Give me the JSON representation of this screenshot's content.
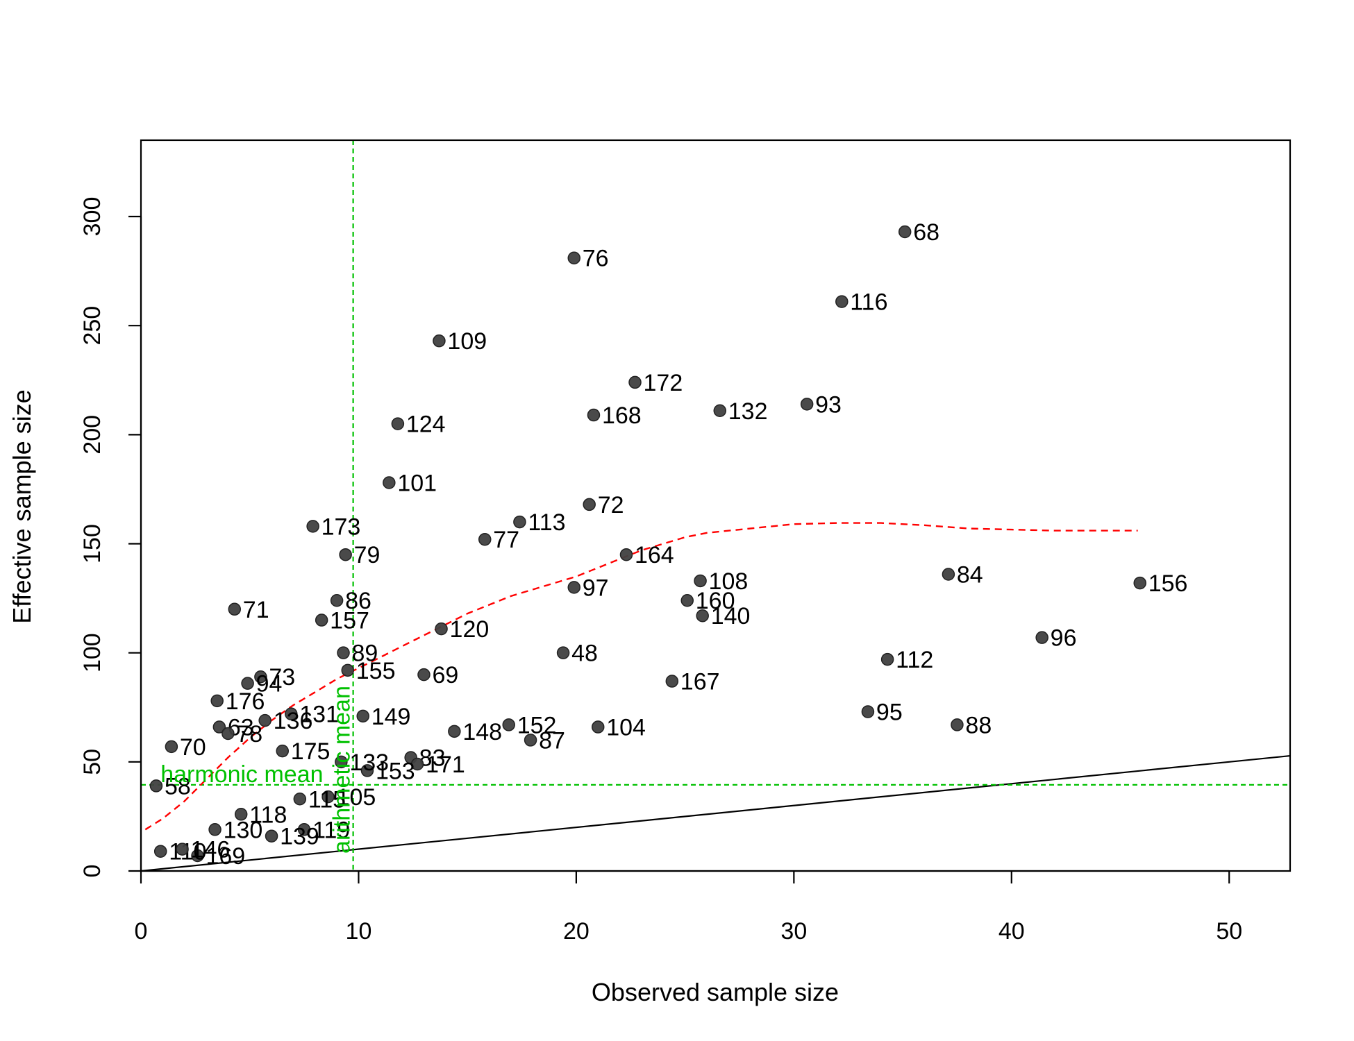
{
  "chart_data": {
    "type": "scatter",
    "title": "",
    "xlabel": "Observed sample size",
    "ylabel": "Effective sample size",
    "xlim": [
      0,
      52.8
    ],
    "ylim": [
      0,
      335
    ],
    "x_ticks": [
      0,
      10,
      20,
      30,
      40,
      50
    ],
    "y_ticks": [
      0,
      50,
      100,
      150,
      200,
      250,
      300
    ],
    "grid": false,
    "legend": "none",
    "colors": {
      "points": "#404040",
      "loess": "#ff0000",
      "reference": "#00c000",
      "identity": "#000000"
    },
    "points": [
      {
        "label": "68",
        "x": 35.1,
        "y": 293
      },
      {
        "label": "76",
        "x": 19.9,
        "y": 281
      },
      {
        "label": "116",
        "x": 32.2,
        "y": 261
      },
      {
        "label": "109",
        "x": 13.7,
        "y": 243
      },
      {
        "label": "172",
        "x": 22.7,
        "y": 224
      },
      {
        "label": "93",
        "x": 30.6,
        "y": 214
      },
      {
        "label": "132",
        "x": 26.6,
        "y": 211
      },
      {
        "label": "168",
        "x": 20.8,
        "y": 209
      },
      {
        "label": "124",
        "x": 11.8,
        "y": 205
      },
      {
        "label": "101",
        "x": 11.4,
        "y": 178
      },
      {
        "label": "72",
        "x": 20.6,
        "y": 168
      },
      {
        "label": "113",
        "x": 17.4,
        "y": 160
      },
      {
        "label": "173",
        "x": 7.9,
        "y": 158
      },
      {
        "label": "77",
        "x": 15.8,
        "y": 152
      },
      {
        "label": "79",
        "x": 9.4,
        "y": 145
      },
      {
        "label": "164",
        "x": 22.3,
        "y": 145
      },
      {
        "label": "84",
        "x": 37.1,
        "y": 136
      },
      {
        "label": "108",
        "x": 25.7,
        "y": 133
      },
      {
        "label": "156",
        "x": 45.9,
        "y": 132
      },
      {
        "label": "97",
        "x": 19.9,
        "y": 130
      },
      {
        "label": "86",
        "x": 9.0,
        "y": 124
      },
      {
        "label": "160",
        "x": 25.1,
        "y": 124
      },
      {
        "label": "71",
        "x": 4.3,
        "y": 120
      },
      {
        "label": "140",
        "x": 25.8,
        "y": 117
      },
      {
        "label": "157",
        "x": 8.3,
        "y": 115
      },
      {
        "label": "120",
        "x": 13.8,
        "y": 111
      },
      {
        "label": "96",
        "x": 41.4,
        "y": 107
      },
      {
        "label": "48",
        "x": 19.4,
        "y": 100
      },
      {
        "label": "89",
        "x": 9.3,
        "y": 100
      },
      {
        "label": "112",
        "x": 34.3,
        "y": 97
      },
      {
        "label": "155",
        "x": 9.5,
        "y": 92
      },
      {
        "label": "69",
        "x": 13.0,
        "y": 90
      },
      {
        "label": "167",
        "x": 24.4,
        "y": 87
      },
      {
        "label": "95",
        "x": 33.4,
        "y": 73
      },
      {
        "label": "149",
        "x": 10.2,
        "y": 71
      },
      {
        "label": "88",
        "x": 37.5,
        "y": 67
      },
      {
        "label": "152",
        "x": 16.9,
        "y": 67
      },
      {
        "label": "104",
        "x": 21.0,
        "y": 66
      },
      {
        "label": "148",
        "x": 14.4,
        "y": 64
      },
      {
        "label": "87",
        "x": 17.9,
        "y": 60
      },
      {
        "label": "70",
        "x": 1.4,
        "y": 57
      },
      {
        "label": "83",
        "x": 12.4,
        "y": 52
      },
      {
        "label": "171",
        "x": 12.7,
        "y": 49
      },
      {
        "label": "153",
        "x": 10.4,
        "y": 46
      },
      {
        "label": "105",
        "x": 8.6,
        "y": 34
      },
      {
        "label": "119",
        "x": 7.5,
        "y": 19
      },
      {
        "label": "139",
        "x": 6.0,
        "y": 16
      },
      {
        "label": "169",
        "x": 2.6,
        "y": 7
      },
      {
        "label": "73",
        "x": 5.5,
        "y": 89
      },
      {
        "label": "94",
        "x": 4.9,
        "y": 86
      },
      {
        "label": "176",
        "x": 3.5,
        "y": 78
      },
      {
        "label": "131",
        "x": 6.9,
        "y": 72
      },
      {
        "label": "136",
        "x": 5.7,
        "y": 69
      },
      {
        "label": "63",
        "x": 3.6,
        "y": 66
      },
      {
        "label": "78",
        "x": 4.0,
        "y": 63
      },
      {
        "label": "175",
        "x": 6.5,
        "y": 55
      },
      {
        "label": "133",
        "x": 9.2,
        "y": 50
      },
      {
        "label": "115",
        "x": 7.3,
        "y": 33
      },
      {
        "label": "118",
        "x": 4.6,
        "y": 26
      },
      {
        "label": "130",
        "x": 3.4,
        "y": 19
      },
      {
        "label": "110",
        "x": 0.9,
        "y": 9
      },
      {
        "label": "146",
        "x": 1.9,
        "y": 10
      },
      {
        "label": "58",
        "x": 0.7,
        "y": 39
      }
    ],
    "loess": [
      {
        "x": 0.2,
        "y": 19
      },
      {
        "x": 1.0,
        "y": 24
      },
      {
        "x": 2.0,
        "y": 32
      },
      {
        "x": 3.0,
        "y": 42
      },
      {
        "x": 4.0,
        "y": 52
      },
      {
        "x": 5.0,
        "y": 61
      },
      {
        "x": 6.0,
        "y": 69
      },
      {
        "x": 7.0,
        "y": 76
      },
      {
        "x": 8.0,
        "y": 82
      },
      {
        "x": 9.0,
        "y": 88
      },
      {
        "x": 10.0,
        "y": 93
      },
      {
        "x": 11.0,
        "y": 98
      },
      {
        "x": 12.0,
        "y": 103
      },
      {
        "x": 13.0,
        "y": 108
      },
      {
        "x": 14.0,
        "y": 113
      },
      {
        "x": 15.0,
        "y": 118
      },
      {
        "x": 16.0,
        "y": 122
      },
      {
        "x": 17.0,
        "y": 126
      },
      {
        "x": 18.0,
        "y": 129
      },
      {
        "x": 19.0,
        "y": 132
      },
      {
        "x": 20.0,
        "y": 135
      },
      {
        "x": 21.0,
        "y": 139
      },
      {
        "x": 22.0,
        "y": 143
      },
      {
        "x": 23.0,
        "y": 147
      },
      {
        "x": 24.0,
        "y": 150
      },
      {
        "x": 25.0,
        "y": 153
      },
      {
        "x": 26.0,
        "y": 155
      },
      {
        "x": 28.0,
        "y": 157
      },
      {
        "x": 30.0,
        "y": 159
      },
      {
        "x": 32.0,
        "y": 159.5
      },
      {
        "x": 34.0,
        "y": 159.5
      },
      {
        "x": 36.0,
        "y": 158.5
      },
      {
        "x": 38.0,
        "y": 157
      },
      {
        "x": 40.0,
        "y": 156.5
      },
      {
        "x": 42.0,
        "y": 156
      },
      {
        "x": 44.0,
        "y": 156
      },
      {
        "x": 45.8,
        "y": 156
      }
    ],
    "identity_line": [
      {
        "x": 0,
        "y": 0
      },
      {
        "x": 52.8,
        "y": 52.8
      }
    ],
    "reference_lines": {
      "arithmetic_mean": {
        "label": "arithmetic mean",
        "x": 9.75
      },
      "harmonic_mean": {
        "label": "harmonic mean",
        "y": 39.5
      }
    }
  }
}
